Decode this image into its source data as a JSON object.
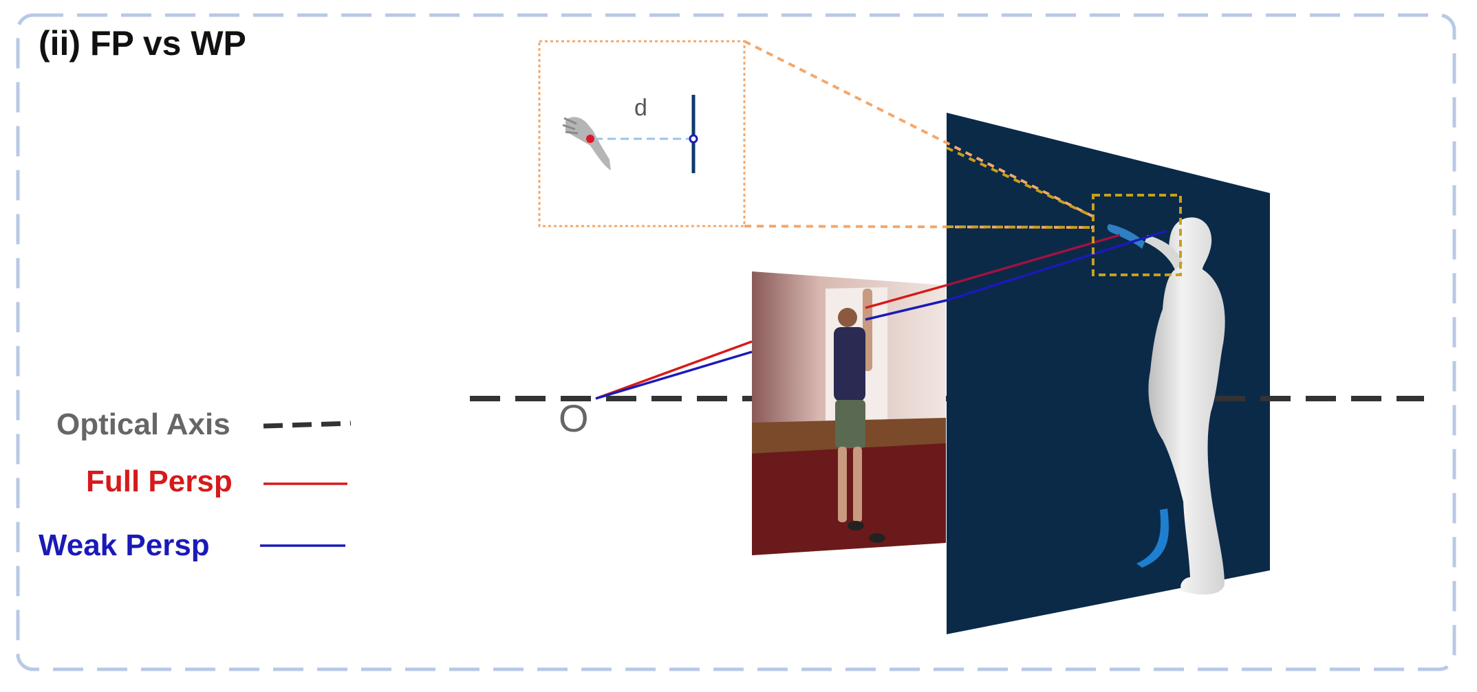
{
  "panel": {
    "title": "(ii) FP vs WP",
    "frame_color": "#b8c9e6"
  },
  "inset": {
    "distance_label": "d",
    "border_color": "#f4a76a",
    "marker_color": "#e0152a",
    "plane_color": "#0f3a70"
  },
  "origin": {
    "label": "O"
  },
  "legend": {
    "optical_axis": {
      "label": "Optical Axis",
      "color": "#333333",
      "text_color": "#666666"
    },
    "full_persp": {
      "label": "Full Persp",
      "color": "#d61a1a"
    },
    "weak_persp": {
      "label": "Weak Persp",
      "color": "#1a1ab8"
    }
  },
  "colors": {
    "back_plane": "#0b2a48",
    "zoom_box": "#c9a01a",
    "photo_wall": "#e8d6cf",
    "photo_floor": "#6a1a1a",
    "mesh_body": "#eeeeee",
    "mesh_blue": "#1e7fd0"
  }
}
